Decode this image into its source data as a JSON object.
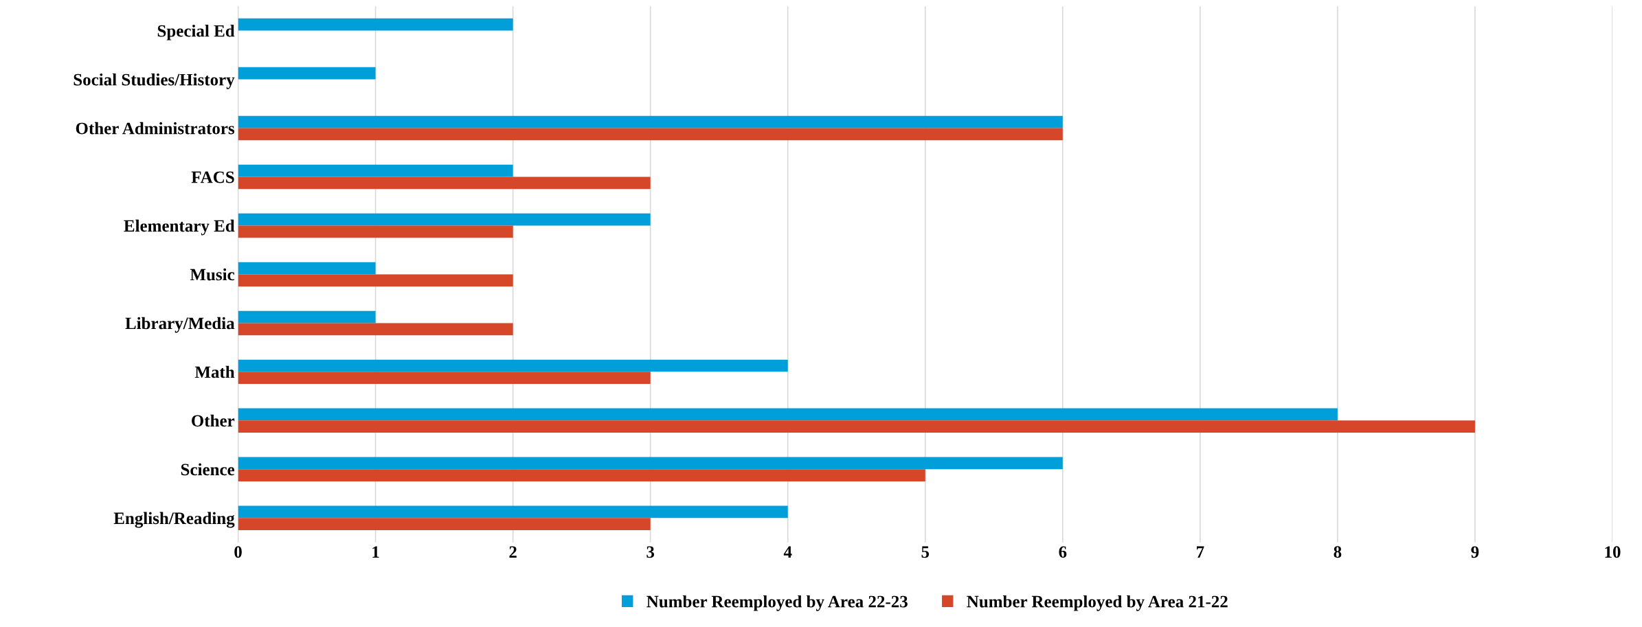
{
  "chart_data": {
    "type": "bar",
    "orientation": "horizontal",
    "categories": [
      "Special Ed",
      "Social Studies/History",
      "Other Administrators",
      "FACS",
      "Elementary Ed",
      "Music",
      "Library/Media",
      "Math",
      "Other",
      "Science",
      "English/Reading"
    ],
    "series": [
      {
        "name": "Number Reemployed by Area 22-23",
        "color": "#009fd9",
        "values": [
          2,
          1,
          6,
          2,
          3,
          1,
          1,
          4,
          8,
          6,
          4
        ]
      },
      {
        "name": "Number Reemployed by Area 21-22",
        "color": "#d6472a",
        "values": [
          null,
          null,
          6,
          3,
          2,
          2,
          2,
          3,
          9,
          5,
          3
        ]
      }
    ],
    "xlim": [
      0,
      10
    ],
    "xticks": [
      0,
      1,
      2,
      3,
      4,
      5,
      6,
      7,
      8,
      9,
      10
    ],
    "grid": "x",
    "legend": "bottom"
  }
}
